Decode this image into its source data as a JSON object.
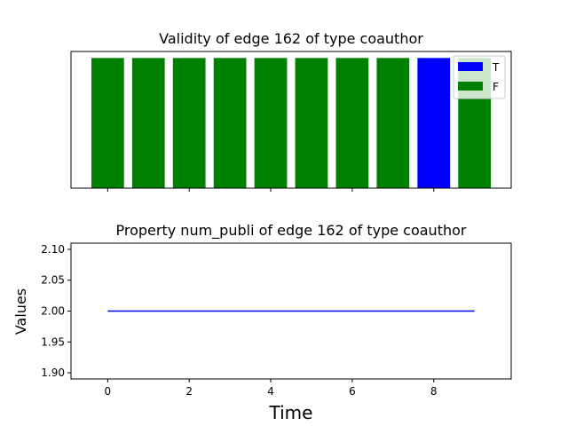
{
  "chart_data": [
    {
      "type": "bar",
      "title": "Validity of edge 162 of type coauthor",
      "x": [
        0,
        1,
        2,
        3,
        4,
        5,
        6,
        7,
        8,
        9
      ],
      "series": [
        {
          "name": "T",
          "color": "#0000ff",
          "x": [
            8
          ],
          "values": [
            1
          ]
        },
        {
          "name": "F",
          "color": "#008000",
          "x": [
            0,
            1,
            2,
            3,
            4,
            5,
            6,
            7,
            9
          ],
          "values": [
            1,
            1,
            1,
            1,
            1,
            1,
            1,
            1,
            1
          ]
        }
      ],
      "xticks": [
        0,
        2,
        4,
        6,
        8
      ],
      "xtick_labels_shown": false,
      "yticks_shown": false,
      "xlim": [
        -0.9,
        9.9
      ],
      "ylim": [
        0,
        1.05
      ],
      "legend": "top-right",
      "grid": false
    },
    {
      "type": "line",
      "title": "Property num_publi of edge 162 of type coauthor",
      "xlabel": "Time",
      "ylabel": "Values",
      "series": [
        {
          "color": "#0000ff",
          "x": [
            0,
            1,
            2,
            3,
            4,
            5,
            6,
            7,
            8,
            9
          ],
          "values": [
            2,
            2,
            2,
            2,
            2,
            2,
            2,
            2,
            2,
            2
          ]
        }
      ],
      "xticks": [
        0,
        2,
        4,
        6,
        8
      ],
      "xtick_labels": [
        "0",
        "2",
        "4",
        "6",
        "8"
      ],
      "yticks": [
        1.9,
        1.95,
        2.0,
        2.05,
        2.1
      ],
      "ytick_labels": [
        "1.90",
        "1.95",
        "2.00",
        "2.05",
        "2.10"
      ],
      "xlim": [
        -0.9,
        9.9
      ],
      "ylim": [
        1.89,
        2.11
      ],
      "grid": false
    }
  ]
}
